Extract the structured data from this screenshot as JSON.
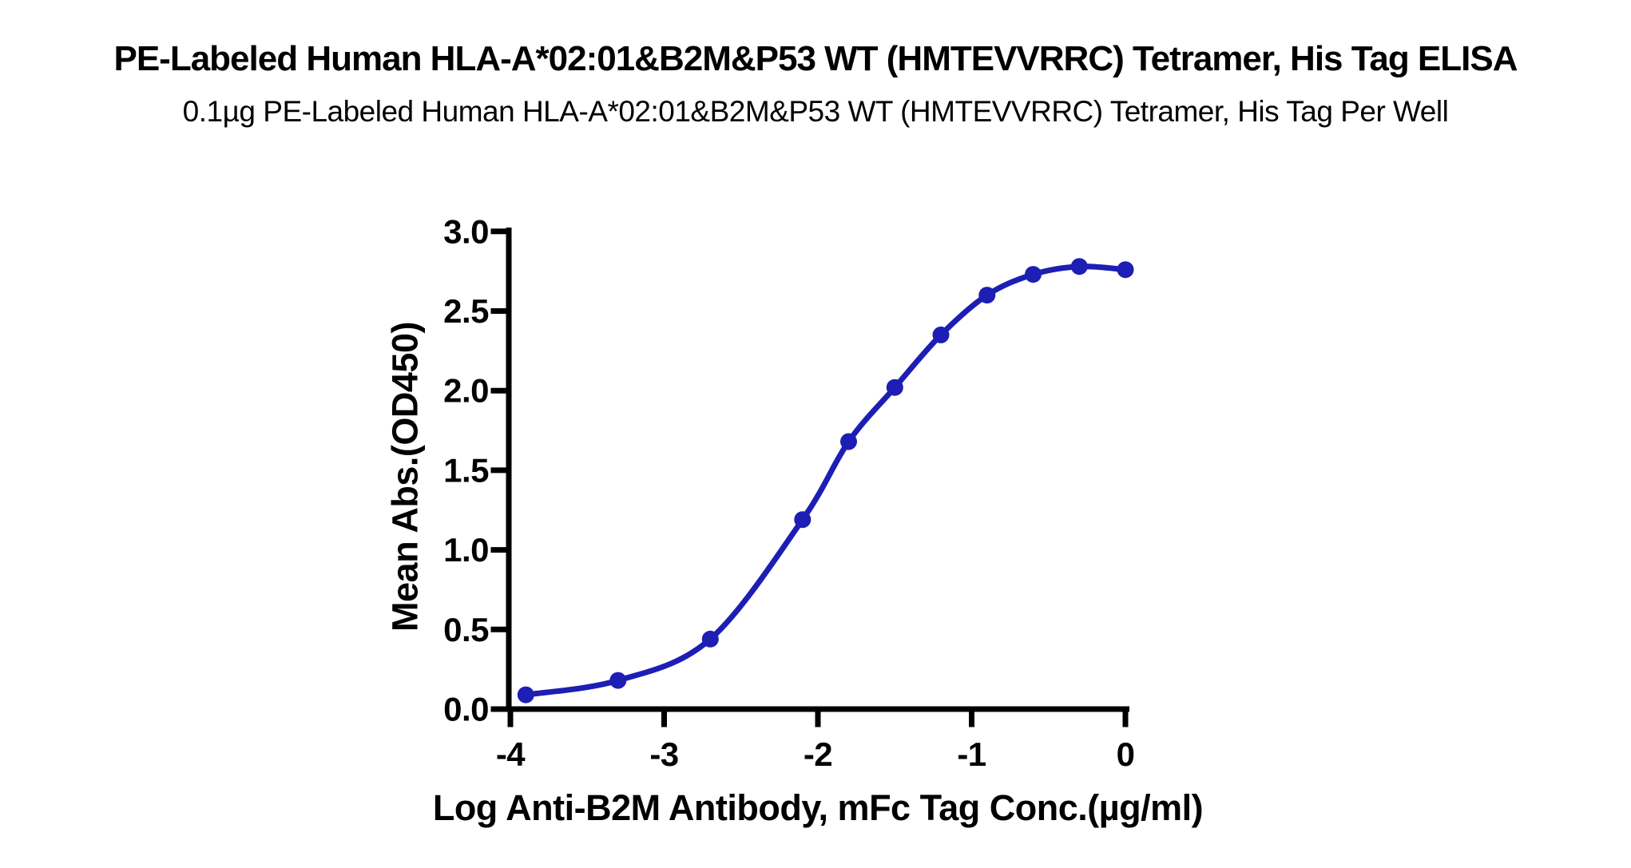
{
  "page": {
    "background": "#ffffff"
  },
  "chart_data": {
    "type": "scatter",
    "title": "PE-Labeled Human HLA-A*02:01&B2M&P53 WT (HMTEVVRRC) Tetramer, His Tag ELISA",
    "subtitle": "0.1µg PE-Labeled Human HLA-A*02:01&B2M&P53 WT (HMTEVVRRC) Tetramer, His Tag Per Well",
    "xlabel": "Log Anti-B2M Antibody, mFc Tag Conc.(µg/ml)",
    "ylabel": "Mean Abs.(OD450)",
    "x": [
      -3.9,
      -3.3,
      -2.7,
      -2.1,
      -1.8,
      -1.5,
      -1.2,
      -0.9,
      -0.6,
      -0.3,
      0
    ],
    "y": [
      0.09,
      0.18,
      0.44,
      1.19,
      1.68,
      2.02,
      2.35,
      2.6,
      2.73,
      2.78,
      2.76
    ],
    "curve": "sigmoidal-4PL-fit",
    "xticks": {
      "values": [
        -4,
        -3,
        -2,
        -1,
        0
      ],
      "labels": [
        "-4",
        "-3",
        "-2",
        "-1",
        "0"
      ]
    },
    "yticks": {
      "values": [
        0,
        0.5,
        1,
        1.5,
        2,
        2.5,
        3
      ],
      "labels": [
        "0.0",
        "0.5",
        "1.0",
        "1.5",
        "2.0",
        "2.5",
        "3.0"
      ]
    },
    "xlim": [
      -4,
      0
    ],
    "ylim": [
      0,
      3
    ],
    "grid": false,
    "legend": null,
    "series_color": "#1C1EB4",
    "axis_color": "#000000",
    "background": "#ffffff"
  }
}
